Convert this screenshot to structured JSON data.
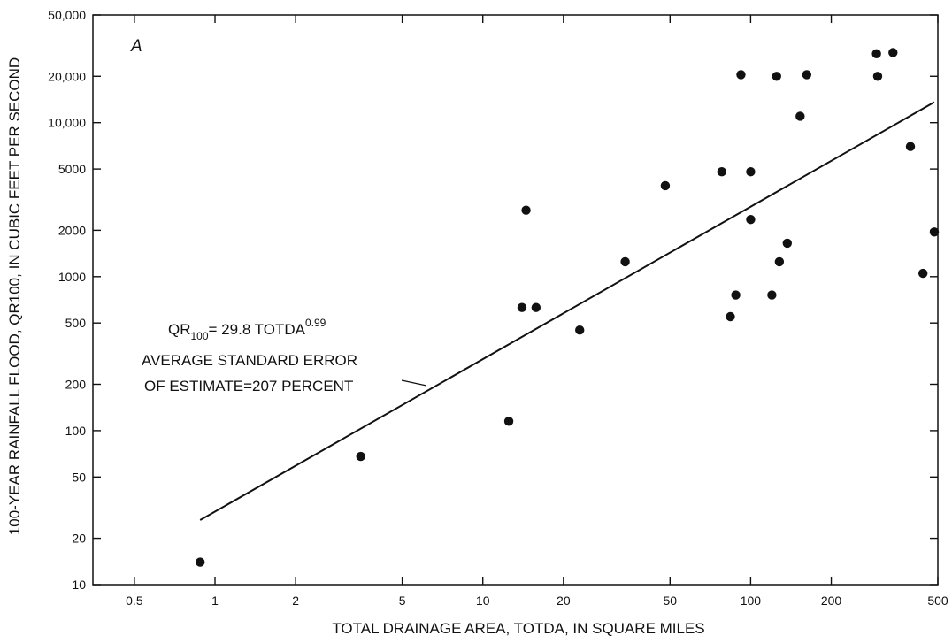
{
  "chart_data": {
    "type": "scatter",
    "panel_label": "A",
    "xlabel": "TOTAL DRAINAGE AREA, TOTDA, IN SQUARE MILES",
    "ylabel": "100-YEAR RAINFALL FLOOD, QR100, IN CUBIC FEET PER SECOND",
    "x_scale": "log",
    "y_scale": "log",
    "xlim": [
      0.35,
      500
    ],
    "ylim": [
      10,
      50000
    ],
    "grid": false,
    "x_ticks": [
      {
        "value": 0.5,
        "label": "0.5"
      },
      {
        "value": 1,
        "label": "1"
      },
      {
        "value": 2,
        "label": "2"
      },
      {
        "value": 5,
        "label": "5"
      },
      {
        "value": 10,
        "label": "10"
      },
      {
        "value": 20,
        "label": "20"
      },
      {
        "value": 50,
        "label": "50"
      },
      {
        "value": 100,
        "label": "100"
      },
      {
        "value": 200,
        "label": "200"
      },
      {
        "value": 500,
        "label": "500"
      }
    ],
    "y_ticks": [
      {
        "value": 10,
        "label": "10"
      },
      {
        "value": 20,
        "label": "20"
      },
      {
        "value": 50,
        "label": "50"
      },
      {
        "value": 100,
        "label": "100"
      },
      {
        "value": 200,
        "label": "200"
      },
      {
        "value": 500,
        "label": "500"
      },
      {
        "value": 1000,
        "label": "1000"
      },
      {
        "value": 2000,
        "label": "2000"
      },
      {
        "value": 5000,
        "label": "5000"
      },
      {
        "value": 10000,
        "label": "10,000"
      },
      {
        "value": 20000,
        "label": "20,000"
      },
      {
        "value": 50000,
        "label": "50,000"
      }
    ],
    "points": [
      {
        "x": 0.88,
        "y": 14
      },
      {
        "x": 3.5,
        "y": 68
      },
      {
        "x": 12.5,
        "y": 115
      },
      {
        "x": 14,
        "y": 630
      },
      {
        "x": 14.5,
        "y": 2700
      },
      {
        "x": 15.8,
        "y": 630
      },
      {
        "x": 23,
        "y": 450
      },
      {
        "x": 34,
        "y": 1250
      },
      {
        "x": 48,
        "y": 3900
      },
      {
        "x": 78,
        "y": 4800
      },
      {
        "x": 84,
        "y": 550
      },
      {
        "x": 88,
        "y": 760
      },
      {
        "x": 92,
        "y": 20500
      },
      {
        "x": 100,
        "y": 4800
      },
      {
        "x": 100,
        "y": 2350
      },
      {
        "x": 120,
        "y": 760
      },
      {
        "x": 125,
        "y": 20000
      },
      {
        "x": 128,
        "y": 1250
      },
      {
        "x": 137,
        "y": 1650
      },
      {
        "x": 153,
        "y": 11000
      },
      {
        "x": 162,
        "y": 20500
      },
      {
        "x": 295,
        "y": 28000
      },
      {
        "x": 298,
        "y": 20000
      },
      {
        "x": 340,
        "y": 28500
      },
      {
        "x": 395,
        "y": 7000
      },
      {
        "x": 440,
        "y": 1050
      },
      {
        "x": 485,
        "y": 1950
      }
    ],
    "regression": {
      "coefficient": 29.8,
      "exponent": 0.99,
      "x_range": [
        0.88,
        485
      ]
    },
    "annotation": {
      "eq_prefix": "QR",
      "eq_sub": "100",
      "eq_mid": "= 29.8 TOTDA",
      "eq_sup": "0.99",
      "line1": "AVERAGE STANDARD ERROR",
      "line2": "OF ESTIMATE=207 PERCENT"
    }
  }
}
